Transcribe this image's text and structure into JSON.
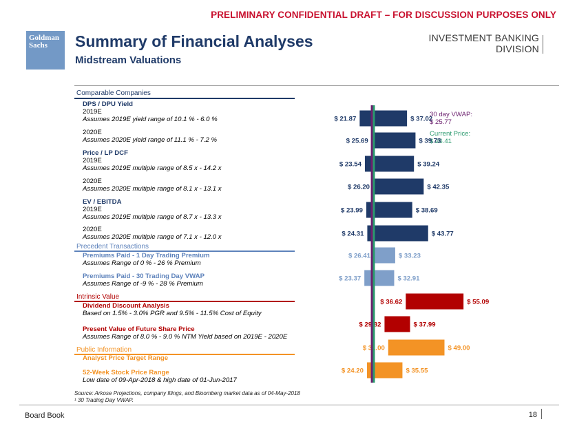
{
  "banner": "PRELIMINARY CONFIDENTIAL DRAFT – FOR DISCUSSION PURPOSES ONLY",
  "logo": {
    "line1": "Goldman",
    "line2": "Sachs"
  },
  "header": {
    "title": "Summary of Financial Analyses",
    "subtitle": "Midstream Valuations",
    "division_line1": "INVESTMENT BANKING",
    "division_line2": "DIVISION"
  },
  "colors": {
    "navy": "#1f3a68",
    "light_blue": "#7f9fc9",
    "dark_red": "#b20000",
    "orange": "#f39325",
    "vwap_line": "#6b1f6e",
    "price_line": "#2a9a6e"
  },
  "sections": [
    {
      "label": "Comparable Companies",
      "color": "#1f3a68"
    },
    {
      "label": "Precedent Transactions",
      "color": "#5d82bb"
    },
    {
      "label": "Intrinsic Value",
      "color": "#b20000"
    },
    {
      "label": "Public Information",
      "color": "#f39325"
    }
  ],
  "rows": [
    {
      "group": "DPS / DPU Yield",
      "name": "2019E",
      "desc": "Assumes 2019E yield range of 10.1 % - 6.0 %"
    },
    {
      "group": "",
      "name": "2020E",
      "desc": "Assumes 2020E yield range of 11.1 % - 7.2 %"
    },
    {
      "group": "Price / LP DCF",
      "name": "2019E",
      "desc": "Assumes 2019E multiple range of 8.5 x - 14.2 x"
    },
    {
      "group": "",
      "name": "2020E",
      "desc": "Assumes 2020E multiple range of 8.1 x - 13.1 x"
    },
    {
      "group": "EV / EBITDA",
      "name": "2019E",
      "desc": "Assumes 2019E multiple range of 8.7 x - 13.3 x"
    },
    {
      "group": "",
      "name": "2020E",
      "desc": "Assumes 2020E multiple range of 7.1 x - 12.0 x"
    },
    {
      "group": "",
      "name": "Premiums Paid - 1 Day Trading Premium",
      "desc": "Assumes Range of 0 % -  26 % Premium"
    },
    {
      "group": "",
      "name": "Premiums Paid - 30 Trading Day VWAP",
      "desc": "Assumes Range of -9 % -  28 % Premium"
    },
    {
      "group": "",
      "name": "Dividend Discount Analysis",
      "desc": "Based on 1.5% - 3.0% PGR and 9.5% - 11.5% Cost of Equity"
    },
    {
      "group": "",
      "name": "Present Value of Future Share Price",
      "desc": "Assumes Range of 8.0 % -  9.0 % NTM Yield based on 2019E - 2020E"
    },
    {
      "group": "",
      "name": "Analyst Price Target Range",
      "desc": ""
    },
    {
      "group": "",
      "name": "52-Week Stock Price Range",
      "desc": "Low date of 09-Apr-2018 & high date of 01-Jun-2017"
    }
  ],
  "chart_data": {
    "type": "bar",
    "subtype": "floating-range",
    "orientation": "horizontal",
    "categories": [
      "DPS / DPU Yield 2019E",
      "DPS / DPU Yield 2020E",
      "Price / LP DCF 2019E",
      "Price / LP DCF 2020E",
      "EV / EBITDA 2019E",
      "EV / EBITDA 2020E",
      "Premiums Paid - 1 Day Trading Premium",
      "Premiums Paid - 30 Trading Day VWAP",
      "Dividend Discount Analysis",
      "Present Value of Future Share Price",
      "Analyst Price Target Range",
      "52-Week Stock Price Range"
    ],
    "low": [
      21.87,
      25.69,
      23.54,
      26.2,
      23.99,
      24.31,
      26.41,
      23.37,
      36.62,
      29.82,
      31.0,
      24.2
    ],
    "high": [
      37.02,
      39.73,
      39.24,
      42.35,
      38.69,
      43.77,
      33.23,
      32.91,
      55.09,
      37.99,
      49.0,
      35.55
    ],
    "low_labels": [
      "$ 21.87",
      "$ 25.69",
      "$ 23.54",
      "$ 26.20",
      "$ 23.99",
      "$ 24.31",
      "$ 26.41",
      "$ 23.37",
      "$ 36.62",
      "$ 29.82",
      "$ 31.00",
      "$ 24.20"
    ],
    "high_labels": [
      "$ 37.02",
      "$ 39.73",
      "$ 39.24",
      "$ 42.35",
      "$ 38.69",
      "$ 43.77",
      "$ 33.23",
      "$ 32.91",
      "$ 55.09",
      "$ 37.99",
      "$ 49.00",
      "$ 35.55"
    ],
    "bar_colors": [
      "#1f3a68",
      "#1f3a68",
      "#1f3a68",
      "#1f3a68",
      "#1f3a68",
      "#1f3a68",
      "#7f9fc9",
      "#7f9fc9",
      "#b20000",
      "#b20000",
      "#f39325",
      "#f39325"
    ],
    "reference_lines": [
      {
        "name": "30 day VWAP:",
        "value": 25.77,
        "label": "$ 25.77",
        "color": "#6b1f6e"
      },
      {
        "name": "Current Price:",
        "value": 26.41,
        "label": "$ 26.41",
        "color": "#2a9a6e"
      }
    ],
    "xlim": [
      12.1,
      56.6
    ],
    "grid": false,
    "legend": "none"
  },
  "source": {
    "line1": "Source: Arkose Projections, company filings, and Bloomberg market data as of 04-May-2018",
    "line2": "¹ 30 Trading Day VWAP."
  },
  "footer": {
    "left": "Board Book",
    "page": "18"
  }
}
